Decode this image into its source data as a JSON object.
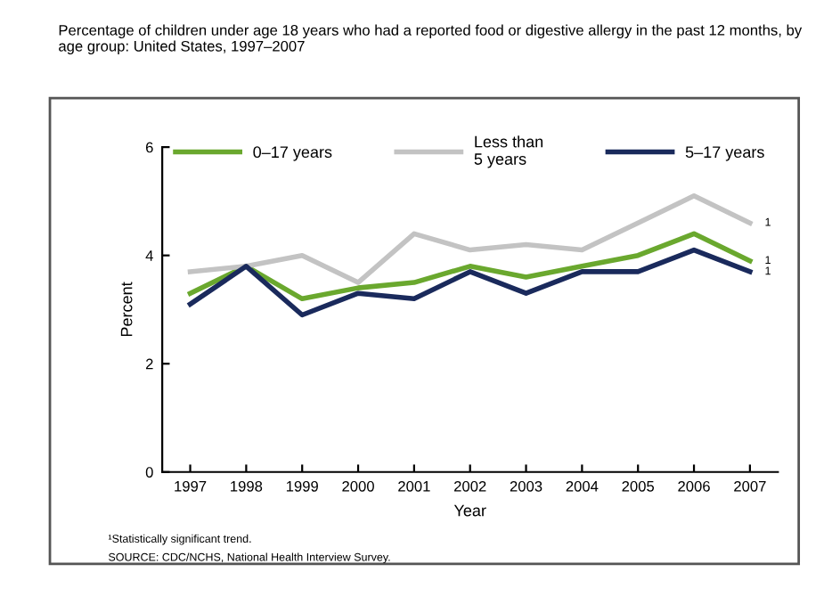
{
  "chart_data": {
    "type": "line",
    "title": "Percentage of children under age 18 years who had a reported food or digestive allergy in the past 12 months, by age group: United States, 1997–2007",
    "xlabel": "Year",
    "ylabel": "Percent",
    "categories": [
      "1997",
      "1998",
      "1999",
      "2000",
      "2001",
      "2002",
      "2003",
      "2004",
      "2005",
      "2006",
      "2007"
    ],
    "series": [
      {
        "name": "0–17 years",
        "color": "#6aa82e",
        "values": [
          3.3,
          3.8,
          3.2,
          3.4,
          3.5,
          3.8,
          3.6,
          3.8,
          4.0,
          4.4,
          3.9
        ]
      },
      {
        "name": "Less than\n5 years",
        "color": "#c3c3c3",
        "values": [
          3.7,
          3.8,
          4.0,
          3.5,
          4.4,
          4.1,
          4.2,
          4.1,
          4.6,
          5.1,
          4.6
        ]
      },
      {
        "name": "5–17 years",
        "color": "#1a2a5c",
        "values": [
          3.1,
          3.8,
          2.9,
          3.3,
          3.2,
          3.7,
          3.3,
          3.7,
          3.7,
          4.1,
          3.7
        ]
      }
    ],
    "ylim": [
      0,
      6
    ],
    "yticks": [
      0,
      2,
      4,
      6
    ],
    "grid": false,
    "legend": "top",
    "marker": "none",
    "line_style": "solid",
    "annotations": [
      {
        "text": "1",
        "x": "2007",
        "y": 4.6
      },
      {
        "text": "1",
        "x": "2007",
        "y": 3.9
      },
      {
        "text": "1",
        "x": "2007",
        "y": 3.7
      },
      "¹Statistically significant trend.",
      "SOURCE: CDC/NCHS, National Health Interview Survey."
    ]
  }
}
